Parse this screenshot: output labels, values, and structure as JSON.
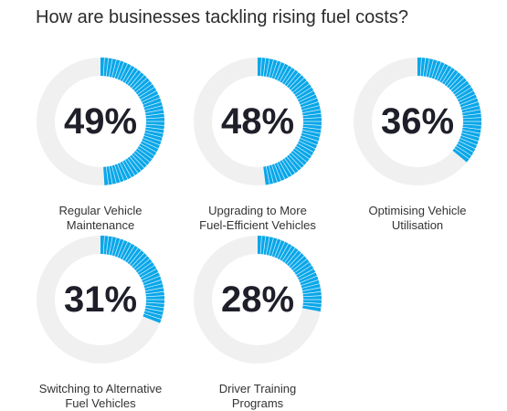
{
  "title": "How are businesses tackling rising fuel costs?",
  "colors": {
    "accent": "#0aa7e9",
    "track": "#f0f0f0",
    "value_text": "#1f1f2a",
    "tick": "#ffffff"
  },
  "chart_data": {
    "type": "donut",
    "title": "How are businesses tackling rising fuel costs?",
    "unit": "%",
    "items": [
      {
        "label_lines": [
          "Regular Vehicle",
          "Maintenance"
        ],
        "value": 49,
        "value_label": "49%"
      },
      {
        "label_lines": [
          "Upgrading to More",
          "Fuel-Efficient Vehicles"
        ],
        "value": 48,
        "value_label": "48%"
      },
      {
        "label_lines": [
          "Optimising Vehicle",
          "Utilisation"
        ],
        "value": 36,
        "value_label": "36%"
      },
      {
        "label_lines": [
          "Switching to Alternative",
          "Fuel Vehicles"
        ],
        "value": 31,
        "value_label": "31%"
      },
      {
        "label_lines": [
          "Driver Training",
          "Programs"
        ],
        "value": 28,
        "value_label": "28%"
      }
    ]
  }
}
